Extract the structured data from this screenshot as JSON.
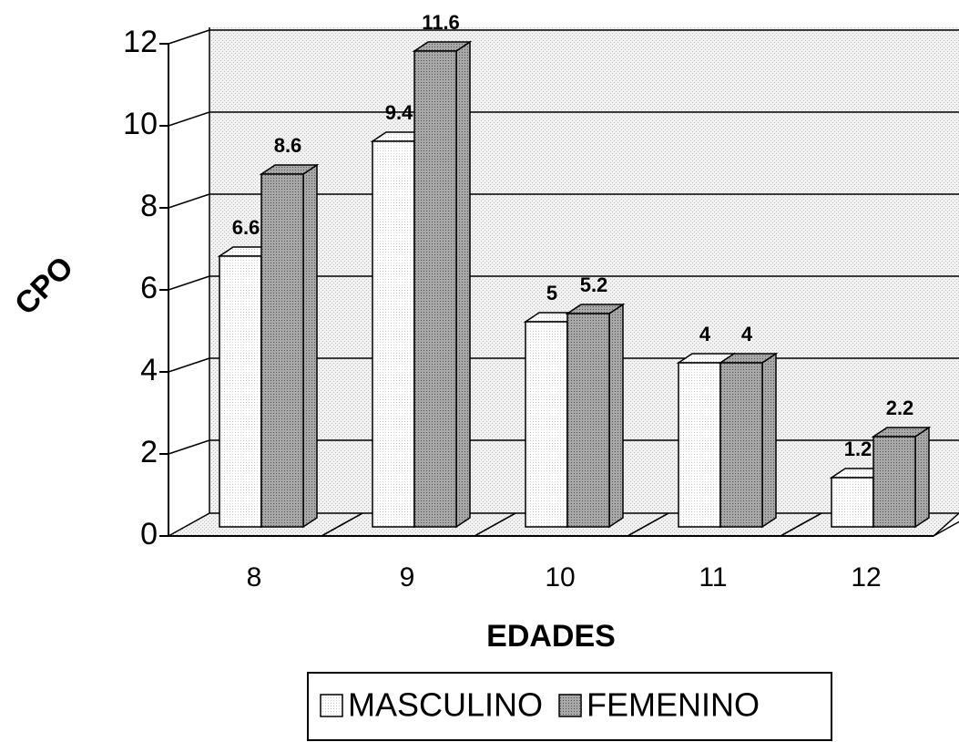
{
  "chart_data": {
    "type": "bar3d",
    "x_label": "EDADES",
    "y_label": "CPO",
    "categories": [
      "8",
      "9",
      "10",
      "11",
      "12"
    ],
    "series": [
      {
        "name": "MASCULINO",
        "color": "#ffffff",
        "values": [
          6.6,
          9.4,
          5,
          4,
          1.2
        ]
      },
      {
        "name": "FEMENINO",
        "color": "#a8a8a8",
        "values": [
          8.6,
          11.6,
          5.2,
          4,
          2.2
        ]
      }
    ],
    "ylim": [
      0,
      12
    ],
    "yticks": [
      0,
      2,
      4,
      6,
      8,
      10,
      12
    ],
    "grid": true,
    "legend": "bottom"
  }
}
